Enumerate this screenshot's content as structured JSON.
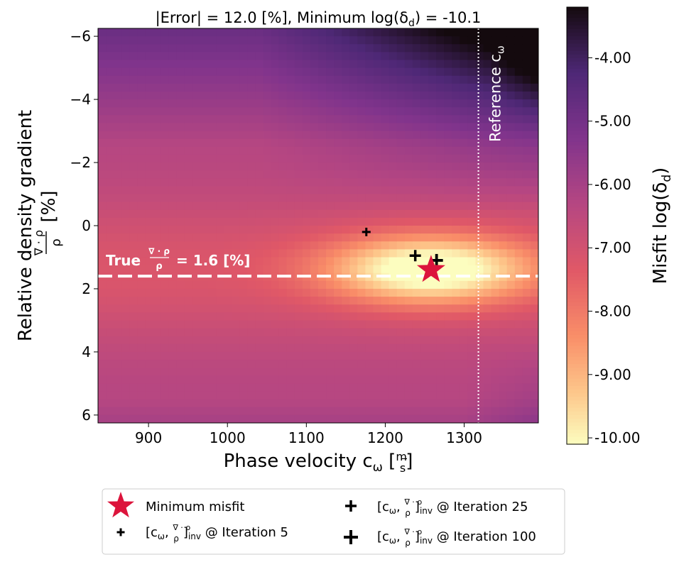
{
  "chart_data": {
    "type": "heatmap",
    "title": "|Error| = 12.0 [%], Minimum log(δ",
    "title_sub": "d",
    "title_end": ") = -10.1",
    "xlabel": "Phase velocity c",
    "xlabel_sub": "ω",
    "xlabel_unit_num": "m",
    "xlabel_unit_den": "s",
    "ylabel_line1": "Relative density gradient",
    "ylabel_frac_num": "∇ · ρ",
    "ylabel_frac_den": "ρ",
    "ylabel_unit": "[%]",
    "xlim": [
      836,
      1394
    ],
    "ylim": [
      -6.25,
      6.25
    ],
    "y_inverted": true,
    "x_ticks": [
      900,
      1000,
      1100,
      1200,
      1300
    ],
    "y_ticks": [
      -6,
      -4,
      -2,
      0,
      2,
      4,
      6
    ],
    "x_tick_labels": [
      "900",
      "1000",
      "1100",
      "1200",
      "1300"
    ],
    "y_tick_labels": [
      "−6",
      "−4",
      "−2",
      "0",
      "2",
      "4",
      "6"
    ],
    "grid": false,
    "colormap": "magma_r",
    "colorbar": {
      "label": "Misfit log(δ",
      "label_sub": "d",
      "label_end": ")",
      "range": [
        -10.1,
        -3.2
      ],
      "ticks": [
        -4,
        -5,
        -6,
        -7,
        -8,
        -9,
        -10
      ],
      "tick_labels": [
        "-4.00",
        "-5.00",
        "-6.00",
        "-7.00",
        "-8.00",
        "-9.00",
        "-10.00"
      ]
    },
    "true_gradient": {
      "value": 1.6,
      "label_prefix": "True",
      "label_num": "∇ · ρ",
      "label_den": "ρ",
      "label_value": "= 1.6 [%]",
      "color": "#ffffff"
    },
    "reference_velocity": {
      "value": 1318,
      "label": "Reference c",
      "label_sub": "ω",
      "color": "#ffffff"
    },
    "minimum_misfit": {
      "x": 1258,
      "y": 1.4,
      "color": "#dc143c"
    },
    "iterations": [
      {
        "iteration": 5,
        "x": 1176,
        "y": 0.2
      },
      {
        "iteration": 25,
        "x": 1238,
        "y": 0.95
      },
      {
        "iteration": 100,
        "x": 1265,
        "y": 1.1
      }
    ],
    "legend": {
      "placement": "bottom",
      "entries": [
        {
          "marker": "star",
          "label": "Minimum misfit"
        },
        {
          "marker": "plus-small",
          "label_prefix": "[c",
          "label_sub": "ω",
          "label_mid": ", ",
          "label_num": "∇ · ρ",
          "label_den": "ρ",
          "label_inv": "]",
          "label_inv_sub": "inv",
          "label_suffix": " @ Iteration 5"
        },
        {
          "marker": "plus-medium",
          "label_prefix": "[c",
          "label_sub": "ω",
          "label_mid": ", ",
          "label_num": "∇ · ρ",
          "label_den": "ρ",
          "label_inv": "]",
          "label_inv_sub": "inv",
          "label_suffix": " @ Iteration 25"
        },
        {
          "marker": "plus-large",
          "label_prefix": "[c",
          "label_sub": "ω",
          "label_mid": ", ",
          "label_num": "∇ · ρ",
          "label_den": "ρ",
          "label_inv": "]",
          "label_inv_sub": "inv",
          "label_suffix": " @ Iteration 100"
        }
      ]
    }
  }
}
